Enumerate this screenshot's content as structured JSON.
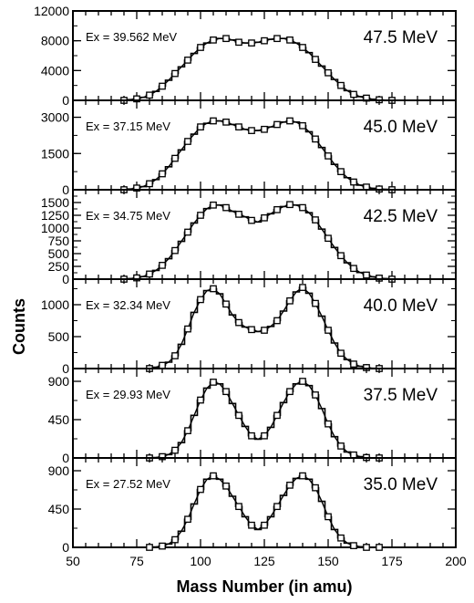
{
  "figure": {
    "ylabel": "Counts",
    "xlabel": "Mass Number (in amu)"
  },
  "chart_data": [
    {
      "type": "line",
      "title": "47.5 MeV",
      "annotation": "Ex = 39.562 MeV",
      "xlabel": "Mass Number (in amu)",
      "ylabel": "Counts",
      "xlim": [
        50,
        200
      ],
      "ylim": [
        0,
        12000
      ],
      "yticks": [
        0,
        4000,
        8000,
        12000
      ],
      "xticks": [
        50,
        75,
        100,
        125,
        150,
        175,
        200
      ],
      "show_x_tick_labels": false,
      "x": [
        70,
        72.5,
        75,
        77.5,
        80,
        82.5,
        85,
        87.5,
        90,
        92.5,
        95,
        97.5,
        100,
        102.5,
        105,
        107.5,
        110,
        112.5,
        115,
        117.5,
        120,
        122.5,
        125,
        127.5,
        130,
        132.5,
        135,
        137.5,
        140,
        142.5,
        145,
        147.5,
        150,
        152.5,
        155,
        157.5,
        160,
        162.5,
        165,
        167.5,
        170,
        172.5,
        175
      ],
      "values": [
        0,
        100,
        200,
        400,
        700,
        1200,
        1900,
        2700,
        3600,
        4500,
        5400,
        6300,
        7100,
        7700,
        8100,
        8300,
        8300,
        8100,
        7800,
        7700,
        7700,
        7800,
        8000,
        8200,
        8300,
        8300,
        8100,
        7700,
        7100,
        6400,
        5500,
        4600,
        3700,
        2800,
        2000,
        1300,
        800,
        500,
        300,
        150,
        80,
        30,
        0
      ]
    },
    {
      "type": "line",
      "title": "45.0 MeV",
      "annotation": "Ex = 37.15 MeV",
      "xlabel": "Mass Number (in amu)",
      "ylabel": "Counts",
      "xlim": [
        50,
        200
      ],
      "ylim": [
        0,
        3700
      ],
      "yticks": [
        0,
        1500,
        3000
      ],
      "xticks": [
        50,
        75,
        100,
        125,
        150,
        175,
        200
      ],
      "show_x_tick_labels": false,
      "x": [
        70,
        72.5,
        75,
        77.5,
        80,
        82.5,
        85,
        87.5,
        90,
        92.5,
        95,
        97.5,
        100,
        102.5,
        105,
        107.5,
        110,
        112.5,
        115,
        117.5,
        120,
        122.5,
        125,
        127.5,
        130,
        132.5,
        135,
        137.5,
        140,
        142.5,
        145,
        147.5,
        150,
        152.5,
        155,
        157.5,
        160,
        162.5,
        165,
        167.5,
        170,
        172.5,
        175
      ],
      "values": [
        0,
        30,
        70,
        130,
        250,
        420,
        660,
        950,
        1300,
        1650,
        2000,
        2300,
        2600,
        2750,
        2850,
        2850,
        2800,
        2700,
        2600,
        2500,
        2450,
        2450,
        2500,
        2600,
        2700,
        2800,
        2850,
        2800,
        2650,
        2400,
        2100,
        1750,
        1400,
        1050,
        750,
        500,
        320,
        190,
        110,
        60,
        30,
        15,
        0
      ]
    },
    {
      "type": "line",
      "title": "42.5 MeV",
      "annotation": "Ex = 34.75 MeV",
      "xlabel": "Mass Number (in amu)",
      "ylabel": "Counts",
      "xlim": [
        50,
        200
      ],
      "ylim": [
        0,
        1750
      ],
      "yticks": [
        0,
        250,
        500,
        750,
        1000,
        1250,
        1500
      ],
      "xticks": [
        50,
        75,
        100,
        125,
        150,
        175,
        200
      ],
      "show_x_tick_labels": false,
      "x": [
        70,
        72.5,
        75,
        77.5,
        80,
        82.5,
        85,
        87.5,
        90,
        92.5,
        95,
        97.5,
        100,
        102.5,
        105,
        107.5,
        110,
        112.5,
        115,
        117.5,
        120,
        122.5,
        125,
        127.5,
        130,
        132.5,
        135,
        137.5,
        140,
        142.5,
        145,
        147.5,
        150,
        152.5,
        155,
        157.5,
        160,
        162.5,
        165,
        167.5,
        170,
        172.5,
        175
      ],
      "values": [
        0,
        10,
        25,
        50,
        100,
        170,
        270,
        400,
        560,
        740,
        920,
        1100,
        1250,
        1380,
        1450,
        1450,
        1400,
        1330,
        1270,
        1220,
        1150,
        1120,
        1200,
        1280,
        1360,
        1420,
        1460,
        1450,
        1400,
        1300,
        1160,
        980,
        800,
        620,
        460,
        320,
        210,
        130,
        80,
        45,
        20,
        10,
        0
      ]
    },
    {
      "type": "line",
      "title": "40.0 MeV",
      "annotation": "Ex = 32.34 MeV",
      "xlabel": "Mass Number (in amu)",
      "ylabel": "Counts",
      "xlim": [
        50,
        200
      ],
      "ylim": [
        0,
        1400
      ],
      "yticks": [
        0,
        500,
        1000
      ],
      "xticks": [
        50,
        75,
        100,
        125,
        150,
        175,
        200
      ],
      "show_x_tick_labels": false,
      "x": [
        80,
        82.5,
        85,
        87.5,
        90,
        92.5,
        95,
        97.5,
        100,
        102.5,
        105,
        107.5,
        110,
        112.5,
        115,
        117.5,
        120,
        122.5,
        125,
        127.5,
        130,
        132.5,
        135,
        137.5,
        140,
        142.5,
        145,
        147.5,
        150,
        152.5,
        155,
        157.5,
        160,
        162.5,
        165,
        167.5,
        170
      ],
      "values": [
        0,
        20,
        50,
        100,
        200,
        380,
        620,
        880,
        1080,
        1220,
        1250,
        1170,
        1010,
        840,
        720,
        650,
        610,
        580,
        600,
        660,
        750,
        900,
        1060,
        1200,
        1270,
        1180,
        1020,
        820,
        600,
        400,
        240,
        140,
        70,
        35,
        15,
        5,
        0
      ]
    },
    {
      "type": "line",
      "title": "37.5 MeV",
      "annotation": "Ex = 29.93 MeV",
      "xlabel": "Mass Number (in amu)",
      "ylabel": "Counts",
      "xlim": [
        50,
        200
      ],
      "ylim": [
        0,
        1050
      ],
      "yticks": [
        0,
        450,
        900
      ],
      "xticks": [
        50,
        75,
        100,
        125,
        150,
        175,
        200
      ],
      "show_x_tick_labels": false,
      "x": [
        80,
        82.5,
        85,
        87.5,
        90,
        92.5,
        95,
        97.5,
        100,
        102.5,
        105,
        107.5,
        110,
        112.5,
        115,
        117.5,
        120,
        122.5,
        125,
        127.5,
        130,
        132.5,
        135,
        137.5,
        140,
        142.5,
        145,
        147.5,
        150,
        152.5,
        155,
        157.5,
        160,
        162.5,
        165,
        167.5,
        170
      ],
      "values": [
        0,
        5,
        15,
        40,
        90,
        180,
        320,
        500,
        680,
        820,
        890,
        870,
        780,
        640,
        500,
        370,
        260,
        220,
        260,
        360,
        500,
        650,
        780,
        870,
        900,
        850,
        740,
        580,
        400,
        250,
        140,
        70,
        35,
        15,
        5,
        0,
        0
      ]
    },
    {
      "type": "line",
      "title": "35.0 MeV",
      "annotation": "Ex = 27.52 MeV",
      "xlabel": "Mass Number (in amu)",
      "ylabel": "Counts",
      "xlim": [
        50,
        200
      ],
      "ylim": [
        0,
        1050
      ],
      "yticks": [
        0,
        450,
        900
      ],
      "xticks": [
        50,
        75,
        100,
        125,
        150,
        175,
        200
      ],
      "show_x_tick_labels": true,
      "x": [
        80,
        82.5,
        85,
        87.5,
        90,
        92.5,
        95,
        97.5,
        100,
        102.5,
        105,
        107.5,
        110,
        112.5,
        115,
        117.5,
        120,
        122.5,
        125,
        127.5,
        130,
        132.5,
        135,
        137.5,
        140,
        142.5,
        145,
        147.5,
        150,
        152.5,
        155,
        157.5,
        160,
        162.5,
        165,
        167.5,
        170
      ],
      "values": [
        0,
        5,
        15,
        40,
        90,
        190,
        330,
        510,
        680,
        800,
        840,
        800,
        720,
        600,
        480,
        360,
        260,
        210,
        260,
        360,
        480,
        610,
        730,
        810,
        840,
        800,
        700,
        540,
        360,
        210,
        110,
        50,
        20,
        8,
        0,
        0,
        0
      ]
    }
  ]
}
